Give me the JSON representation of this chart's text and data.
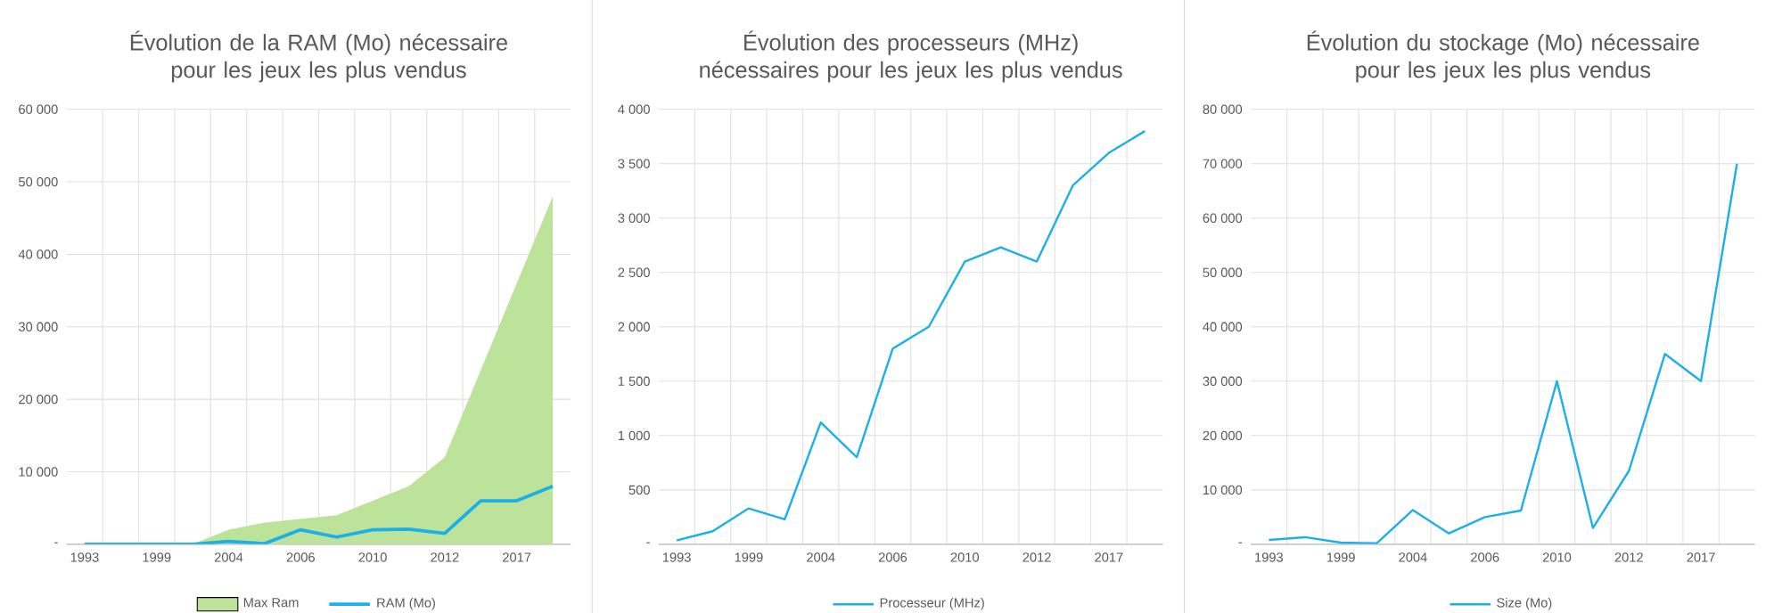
{
  "chart_data": [
    {
      "type": "area",
      "title": "Évolution de la RAM (Mo) nécessaire pour les jeux les plus vendus",
      "categories": [
        "1993",
        null,
        "1999",
        null,
        "2004",
        null,
        "2006",
        null,
        "2010",
        null,
        "2012",
        null,
        "2017",
        null
      ],
      "series": [
        {
          "name": "Max Ram",
          "type": "area",
          "color": "#bde29a",
          "values": [
            0,
            0,
            0,
            0,
            2000,
            3000,
            3500,
            4000,
            6000,
            8000,
            12000,
            24000,
            36000,
            48000
          ]
        },
        {
          "name": "RAM (Mo)",
          "type": "line",
          "color": "#1cb0e8",
          "values": [
            0,
            0,
            0,
            0,
            400,
            100,
            2000,
            1000,
            2000,
            2100,
            1500,
            6000,
            6000,
            8000
          ]
        }
      ],
      "ylim": [
        0,
        60000
      ],
      "yticks": [
        {
          "value": 0,
          "label": "-"
        },
        {
          "value": 10000,
          "label": "10 000"
        },
        {
          "value": 20000,
          "label": "20 000"
        },
        {
          "value": 30000,
          "label": "30 000"
        },
        {
          "value": 40000,
          "label": "40 000"
        },
        {
          "value": 50000,
          "label": "50 000"
        },
        {
          "value": 60000,
          "label": "60 000"
        }
      ],
      "grid": true,
      "legend": "bottom"
    },
    {
      "type": "line",
      "title": "Évolution des processeurs (MHz) nécessaires pour les jeux les plus vendus",
      "categories": [
        "1993",
        null,
        "1999",
        null,
        "2004",
        null,
        "2006",
        null,
        "2010",
        null,
        "2012",
        null,
        "2017",
        null
      ],
      "series": [
        {
          "name": "Processeur (MHz)",
          "color": "#1cb0e8",
          "values": [
            35,
            120,
            330,
            230,
            1120,
            800,
            1800,
            2000,
            2600,
            2730,
            2600,
            3300,
            3600,
            3800
          ]
        }
      ],
      "ylim": [
        0,
        4000
      ],
      "yticks": [
        {
          "value": 0,
          "label": "-"
        },
        500,
        {
          "value": 1000,
          "label": "1 000"
        },
        {
          "value": 1500,
          "label": "1 500"
        },
        {
          "value": 2000,
          "label": "2 000"
        },
        {
          "value": 2500,
          "label": "2 500"
        },
        {
          "value": 3000,
          "label": "3 000"
        },
        {
          "value": 3500,
          "label": "3 500"
        },
        {
          "value": 4000,
          "label": "4 000"
        }
      ],
      "grid": true,
      "legend": "bottom"
    },
    {
      "type": "line",
      "title": "Évolution du stockage (Mo) nécessaire pour les jeux les plus vendus",
      "categories": [
        "1993",
        null,
        "1999",
        null,
        "2004",
        null,
        "2006",
        null,
        "2010",
        null,
        "2012",
        null,
        "2017",
        null
      ],
      "series": [
        {
          "name": "Size (Mo)",
          "color": "#1cb0e8",
          "values": [
            800,
            1300,
            300,
            200,
            6300,
            2000,
            5000,
            6200,
            30000,
            3000,
            13500,
            35000,
            30000,
            70000
          ]
        }
      ],
      "ylim": [
        0,
        80000
      ],
      "yticks": [
        {
          "value": 0,
          "label": "-"
        },
        {
          "value": 10000,
          "label": "10 000"
        },
        {
          "value": 20000,
          "label": "20 000"
        },
        {
          "value": 30000,
          "label": "30 000"
        },
        {
          "value": 40000,
          "label": "40 000"
        },
        {
          "value": 50000,
          "label": "50 000"
        },
        {
          "value": 60000,
          "label": "60 000"
        },
        {
          "value": 70000,
          "label": "70 000"
        },
        {
          "value": 80000,
          "label": "80 000"
        }
      ],
      "grid": true,
      "legend": "bottom"
    }
  ]
}
